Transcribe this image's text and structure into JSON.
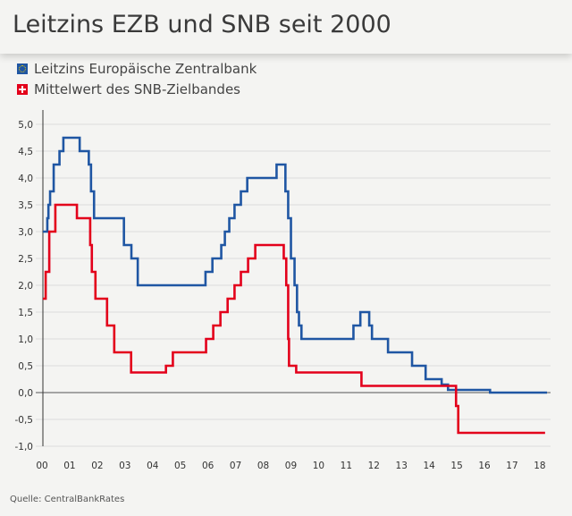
{
  "title": "Leitzins EZB und SNB seit 2000",
  "source": "Quelle: CentralBankRates",
  "chart_data": {
    "type": "line",
    "step": true,
    "title": "Leitzins EZB und SNB seit 2000",
    "xlabel": "",
    "ylabel": "",
    "xlim": [
      2000,
      2018.4
    ],
    "ylim": [
      -1.0,
      5.0
    ],
    "grid": true,
    "legend_position": "top-left",
    "y_ticks": [
      "5,0",
      "4,5",
      "4,0",
      "3,5",
      "3,0",
      "2,5",
      "2,0",
      "1,5",
      "1,0",
      "0,5",
      "0,0",
      "-0,5",
      "-1,0"
    ],
    "y_tick_values": [
      5,
      4.5,
      4,
      3.5,
      3,
      2.5,
      2,
      1.5,
      1,
      0.5,
      0,
      -0.5,
      -1
    ],
    "x_ticks": [
      "00",
      "01",
      "02",
      "03",
      "04",
      "05",
      "06",
      "07",
      "08",
      "09",
      "10",
      "11",
      "12",
      "13",
      "14",
      "15",
      "16",
      "17",
      "18"
    ],
    "x_tick_values": [
      2000,
      2001,
      2002,
      2003,
      2004,
      2005,
      2006,
      2007,
      2008,
      2009,
      2010,
      2011,
      2012,
      2013,
      2014,
      2015,
      2016,
      2017,
      2018
    ],
    "series": [
      {
        "name": "Leitzins Europäische Zentralbank",
        "color": "#1f56a3",
        "icon": "eu-flag-icon",
        "points": [
          [
            2000.0,
            3.0
          ],
          [
            2000.16,
            3.25
          ],
          [
            2000.2,
            3.5
          ],
          [
            2000.26,
            3.75
          ],
          [
            2000.39,
            4.25
          ],
          [
            2000.6,
            4.5
          ],
          [
            2000.74,
            4.75
          ],
          [
            2001.33,
            4.5
          ],
          [
            2001.66,
            4.25
          ],
          [
            2001.74,
            3.75
          ],
          [
            2001.85,
            3.25
          ],
          [
            2002.93,
            2.75
          ],
          [
            2003.2,
            2.5
          ],
          [
            2003.43,
            2.0
          ],
          [
            2005.88,
            2.25
          ],
          [
            2006.13,
            2.5
          ],
          [
            2006.45,
            2.75
          ],
          [
            2006.58,
            3.0
          ],
          [
            2006.74,
            3.25
          ],
          [
            2006.93,
            3.5
          ],
          [
            2007.16,
            3.75
          ],
          [
            2007.39,
            4.0
          ],
          [
            2008.45,
            4.25
          ],
          [
            2008.77,
            3.75
          ],
          [
            2008.87,
            3.25
          ],
          [
            2008.97,
            2.5
          ],
          [
            2009.1,
            2.0
          ],
          [
            2009.19,
            1.5
          ],
          [
            2009.26,
            1.25
          ],
          [
            2009.35,
            1.0
          ],
          [
            2011.23,
            1.25
          ],
          [
            2011.48,
            1.5
          ],
          [
            2011.8,
            1.25
          ],
          [
            2011.9,
            1.0
          ],
          [
            2012.48,
            0.75
          ],
          [
            2013.35,
            0.5
          ],
          [
            2013.84,
            0.25
          ],
          [
            2014.42,
            0.15
          ],
          [
            2014.65,
            0.05
          ],
          [
            2016.17,
            0.0
          ],
          [
            2018.23,
            0.0
          ]
        ]
      },
      {
        "name": "Mittelwert des SNB-Zielbandes",
        "color": "#e3001b",
        "icon": "swiss-flag-icon",
        "points": [
          [
            2000.0,
            1.75
          ],
          [
            2000.1,
            2.25
          ],
          [
            2000.23,
            3.0
          ],
          [
            2000.45,
            3.5
          ],
          [
            2001.23,
            3.25
          ],
          [
            2001.71,
            2.75
          ],
          [
            2001.77,
            2.25
          ],
          [
            2001.9,
            1.75
          ],
          [
            2002.32,
            1.25
          ],
          [
            2002.58,
            0.75
          ],
          [
            2003.19,
            0.375
          ],
          [
            2004.45,
            0.5
          ],
          [
            2004.7,
            0.75
          ],
          [
            2005.9,
            1.0
          ],
          [
            2006.16,
            1.25
          ],
          [
            2006.42,
            1.5
          ],
          [
            2006.68,
            1.75
          ],
          [
            2006.93,
            2.0
          ],
          [
            2007.16,
            2.25
          ],
          [
            2007.42,
            2.5
          ],
          [
            2007.68,
            2.75
          ],
          [
            2008.71,
            2.5
          ],
          [
            2008.8,
            2.0
          ],
          [
            2008.87,
            1.0
          ],
          [
            2008.9,
            0.5
          ],
          [
            2009.16,
            0.375
          ],
          [
            2011.52,
            0.125
          ],
          [
            2014.94,
            -0.25
          ],
          [
            2015.02,
            -0.75
          ],
          [
            2018.16,
            -0.75
          ]
        ]
      }
    ]
  }
}
